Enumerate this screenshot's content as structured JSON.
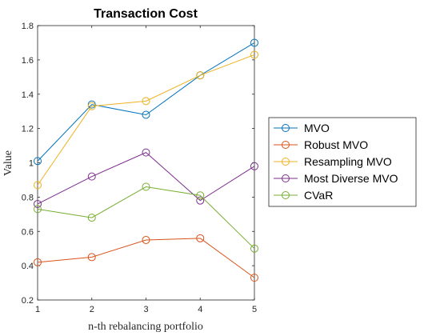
{
  "chart_data": {
    "type": "line",
    "title": "Transaction Cost",
    "xlabel": "n-th rebalancing portfolio",
    "ylabel": "Value",
    "x": [
      1,
      2,
      3,
      4,
      5
    ],
    "xlim": [
      1,
      5
    ],
    "ylim": [
      0.2,
      1.8
    ],
    "xticks": [
      "1",
      "2",
      "3",
      "4",
      "5"
    ],
    "yticks": [
      "0.2",
      "0.4",
      "0.6",
      "0.8",
      "1",
      "1.2",
      "1.4",
      "1.6",
      "1.8"
    ],
    "grid": false,
    "legend_position": "outside-right",
    "series": [
      {
        "name": "MVO",
        "color": "#0072BD",
        "values": [
          1.01,
          1.34,
          1.28,
          1.51,
          1.7
        ]
      },
      {
        "name": "Robust MVO",
        "color": "#D95319",
        "values": [
          0.42,
          0.45,
          0.55,
          0.56,
          0.33
        ]
      },
      {
        "name": "Resampling MVO",
        "color": "#EDB120",
        "values": [
          0.87,
          1.33,
          1.36,
          1.51,
          1.63
        ]
      },
      {
        "name": "Most Diverse MVO",
        "color": "#7E2F8E",
        "values": [
          0.76,
          0.92,
          1.06,
          0.78,
          0.98
        ]
      },
      {
        "name": "CVaR",
        "color": "#77AC30",
        "values": [
          0.73,
          0.68,
          0.86,
          0.81,
          0.5
        ]
      }
    ]
  }
}
